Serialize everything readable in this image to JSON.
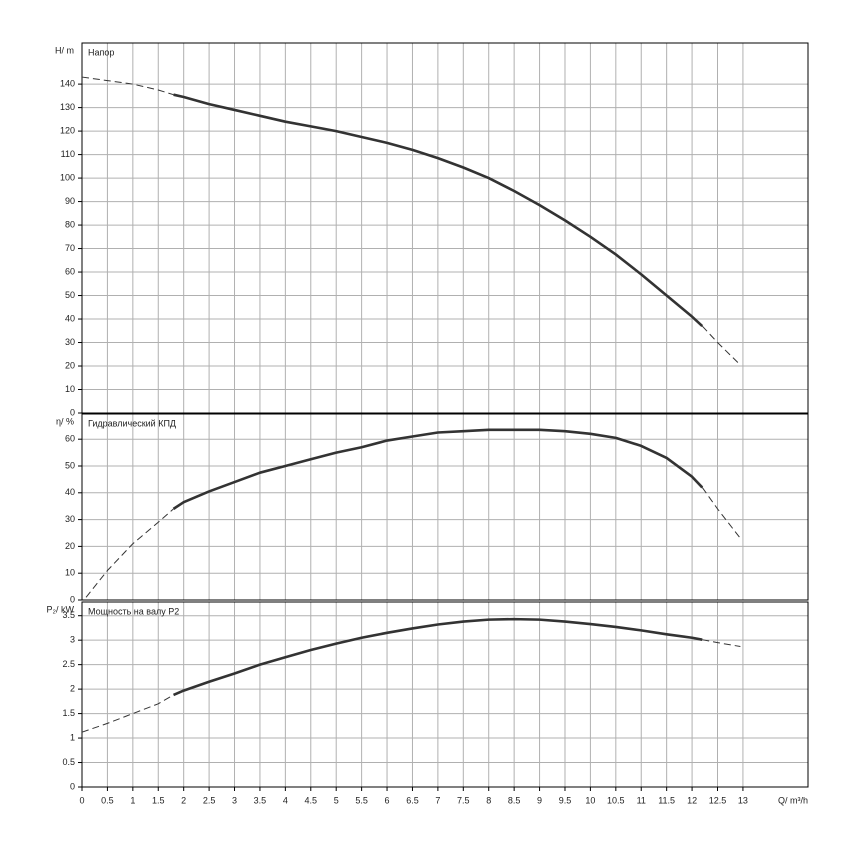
{
  "chart_data": [
    {
      "type": "line",
      "title": "Напор",
      "ylabel": "H/ m",
      "ylim": [
        0,
        157.5
      ],
      "yticks": [
        0,
        10,
        20,
        30,
        40,
        50,
        60,
        70,
        80,
        90,
        100,
        110,
        120,
        130,
        140
      ],
      "xlim": [
        0,
        14.28
      ],
      "grid": true,
      "color": "#333333",
      "segments": [
        {
          "line": "dashed",
          "x": [
            0,
            0.5,
            1,
            1.5,
            1.8
          ],
          "values": [
            143,
            141.5,
            140,
            137.5,
            135.5
          ]
        },
        {
          "line": "solid",
          "x": [
            1.8,
            2,
            2.5,
            3,
            3.5,
            4,
            4.5,
            5,
            5.5,
            6,
            6.5,
            7,
            7.5,
            8,
            8.5,
            9,
            9.5,
            10,
            10.5,
            11,
            11.5,
            12,
            12.2
          ],
          "values": [
            135.5,
            134.5,
            131.5,
            129,
            126.5,
            124,
            122,
            120,
            117.5,
            115,
            112,
            108.5,
            104.5,
            100,
            94.5,
            88.5,
            82,
            75,
            67.5,
            59,
            50,
            41,
            37
          ]
        },
        {
          "line": "dashed",
          "x": [
            12.2,
            12.5,
            12.9
          ],
          "values": [
            37,
            30,
            21.5
          ]
        }
      ]
    },
    {
      "type": "line",
      "title": "Гидравлический КПД",
      "ylabel": "η/ %",
      "ylim": [
        0,
        69.4
      ],
      "yticks": [
        0,
        10,
        20,
        30,
        40,
        50,
        60
      ],
      "xlim": [
        0,
        14.28
      ],
      "grid": true,
      "color": "#333333",
      "segments": [
        {
          "line": "dashed",
          "x": [
            0.08,
            0.5,
            1,
            1.5,
            1.8
          ],
          "values": [
            1,
            11,
            21,
            29,
            34
          ]
        },
        {
          "line": "solid",
          "x": [
            1.8,
            2,
            2.5,
            3,
            3.5,
            4,
            4.5,
            5,
            5.5,
            6,
            6.5,
            7,
            7.5,
            8,
            8.5,
            9,
            9.5,
            10,
            10.5,
            11,
            11.5,
            12,
            12.2
          ],
          "values": [
            34,
            36.5,
            40.5,
            44,
            47.5,
            50,
            52.5,
            55,
            57,
            59.5,
            61,
            62.5,
            63,
            63.5,
            63.5,
            63.5,
            63,
            62,
            60.5,
            57.5,
            53,
            46,
            42
          ]
        },
        {
          "line": "dashed",
          "x": [
            12.2,
            12.5,
            12.95
          ],
          "values": [
            42,
            34,
            23
          ]
        }
      ]
    },
    {
      "type": "line",
      "title": "Мощность на валу P2",
      "ylabel": "P₂/ kW",
      "xlabel": "Q/ m³/h",
      "ylim": [
        0,
        3.78
      ],
      "yticks": [
        0,
        0.5,
        1,
        1.5,
        2,
        2.5,
        3,
        3.5
      ],
      "xlim": [
        0,
        14.28
      ],
      "xticks": [
        0,
        0.5,
        1,
        1.5,
        2,
        2.5,
        3,
        3.5,
        4,
        4.5,
        5,
        5.5,
        6,
        6.5,
        7,
        7.5,
        8,
        8.5,
        9,
        9.5,
        10,
        10.5,
        11,
        11.5,
        12,
        12.5,
        13
      ],
      "grid": true,
      "color": "#333333",
      "segments": [
        {
          "line": "dashed",
          "x": [
            0,
            0.5,
            1,
            1.5,
            1.8
          ],
          "values": [
            1.12,
            1.3,
            1.5,
            1.7,
            1.88
          ]
        },
        {
          "line": "solid",
          "x": [
            1.8,
            2,
            2.5,
            3,
            3.5,
            4,
            4.5,
            5,
            5.5,
            6,
            6.5,
            7,
            7.5,
            8,
            8.5,
            9,
            9.5,
            10,
            10.5,
            11,
            11.5,
            12,
            12.2
          ],
          "values": [
            1.88,
            1.97,
            2.15,
            2.32,
            2.5,
            2.65,
            2.8,
            2.93,
            3.05,
            3.15,
            3.24,
            3.32,
            3.38,
            3.42,
            3.43,
            3.42,
            3.38,
            3.33,
            3.27,
            3.2,
            3.12,
            3.05,
            3.01
          ]
        },
        {
          "line": "dashed",
          "x": [
            12.2,
            12.5,
            12.95
          ],
          "values": [
            3.01,
            2.95,
            2.87
          ]
        }
      ]
    }
  ]
}
